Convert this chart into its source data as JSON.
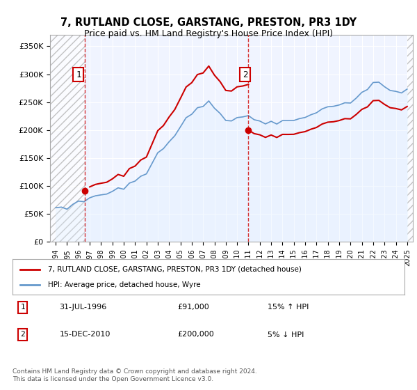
{
  "title": "7, RUTLAND CLOSE, GARSTANG, PRESTON, PR3 1DY",
  "subtitle": "Price paid vs. HM Land Registry's House Price Index (HPI)",
  "legend_line1": "7, RUTLAND CLOSE, GARSTANG, PRESTON, PR3 1DY (detached house)",
  "legend_line2": "HPI: Average price, detached house, Wyre",
  "annotation1_label": "1",
  "annotation1_date": "31-JUL-1996",
  "annotation1_price": "£91,000",
  "annotation1_hpi": "15% ↑ HPI",
  "annotation2_label": "2",
  "annotation2_date": "15-DEC-2010",
  "annotation2_price": "£200,000",
  "annotation2_hpi": "5% ↓ HPI",
  "footer": "Contains HM Land Registry data © Crown copyright and database right 2024.\nThis data is licensed under the Open Government Licence v3.0.",
  "sale_color": "#cc0000",
  "hpi_color": "#6699cc",
  "hpi_fill_color": "#ddeeff",
  "background_color": "#ffffff",
  "plot_bg_color": "#f0f4ff",
  "hatch_color": "#cccccc",
  "ylim": [
    0,
    370000
  ],
  "yticks": [
    0,
    50000,
    100000,
    150000,
    200000,
    250000,
    300000,
    350000
  ],
  "ytick_labels": [
    "£0",
    "£50K",
    "£100K",
    "£150K",
    "£200K",
    "£250K",
    "£300K",
    "£350K"
  ],
  "sale1_x": 1996.58,
  "sale1_y": 91000,
  "sale2_x": 2010.96,
  "sale2_y": 200000,
  "xmin": 1993.5,
  "xmax": 2025.5
}
